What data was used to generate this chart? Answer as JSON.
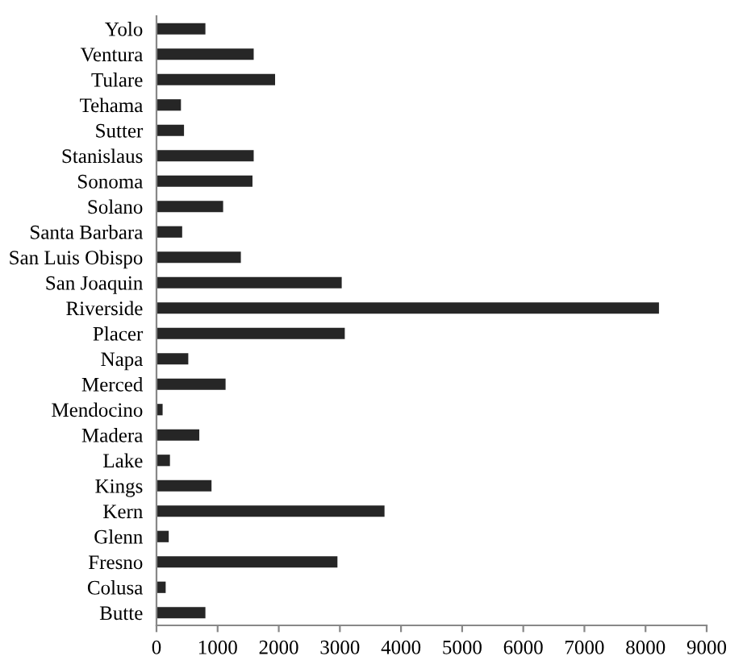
{
  "chart_data": {
    "type": "bar",
    "orientation": "horizontal",
    "categories": [
      "Yolo",
      "Ventura",
      "Tulare",
      "Tehama",
      "Sutter",
      "Stanislaus",
      "Sonoma",
      "Solano",
      "Santa Barbara",
      "San Luis Obispo",
      "San Joaquin",
      "Riverside",
      "Placer",
      "Napa",
      "Merced",
      "Mendocino",
      "Madera",
      "Lake",
      "Kings",
      "Kern",
      "Glenn",
      "Fresno",
      "Colusa",
      "Butte"
    ],
    "values": [
      800,
      1590,
      1940,
      400,
      450,
      1590,
      1570,
      1090,
      420,
      1380,
      3030,
      8220,
      3080,
      520,
      1130,
      100,
      700,
      220,
      900,
      3730,
      200,
      2960,
      150,
      800
    ],
    "color": "#262626",
    "xlim": [
      0,
      9000
    ],
    "xticks": [
      0,
      1000,
      2000,
      3000,
      4000,
      5000,
      6000,
      7000,
      8000,
      9000
    ],
    "grid": false,
    "legend": false
  }
}
